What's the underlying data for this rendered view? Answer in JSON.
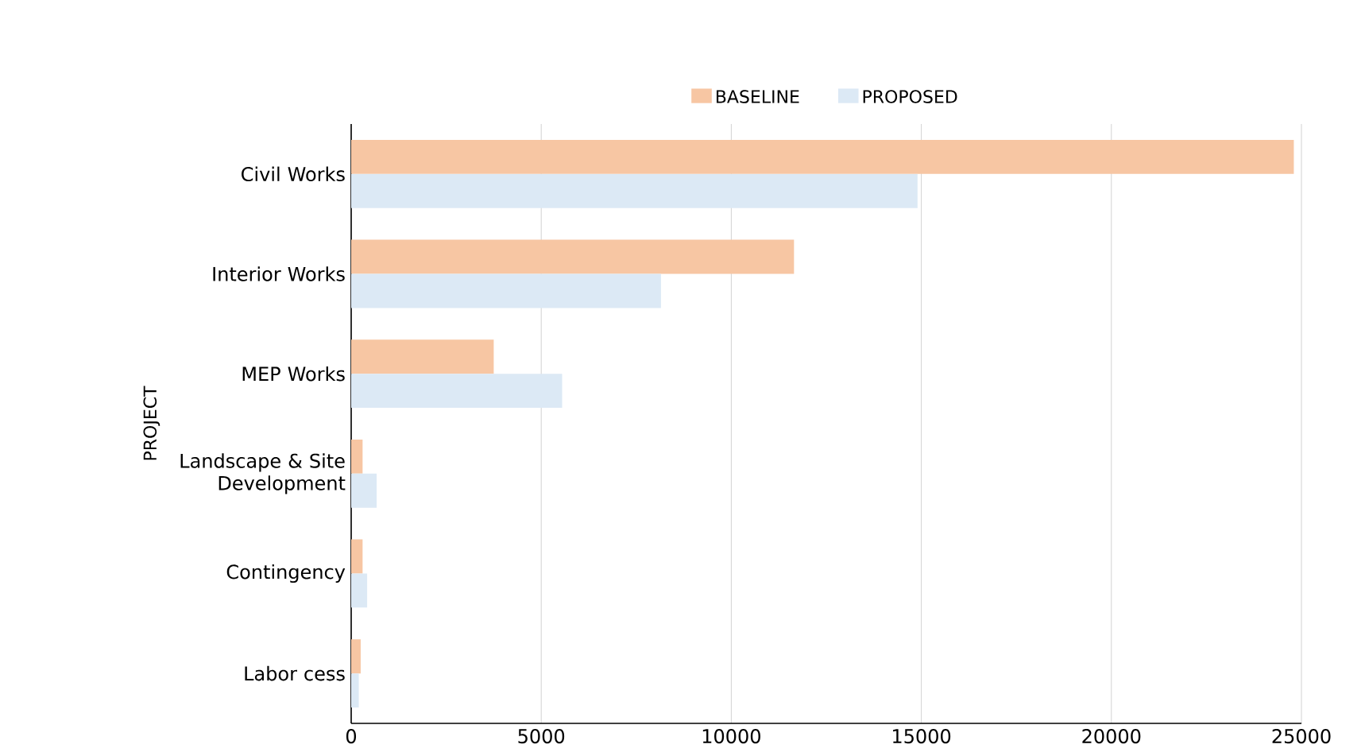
{
  "chart_data": {
    "type": "bar",
    "orientation": "horizontal",
    "ylabel": "PROJECT",
    "categories": [
      "Civil Works",
      "Interior Works",
      "MEP Works",
      "Landscape & Site Development",
      "Contingency",
      "Labor cess"
    ],
    "series": [
      {
        "name": "BASELINE",
        "color": "#f7c6a3",
        "values": [
          24800,
          11650,
          3750,
          300,
          300,
          250
        ]
      },
      {
        "name": "PROPOSED",
        "color": "#dce9f5",
        "values": [
          14900,
          8150,
          5550,
          670,
          420,
          200
        ]
      }
    ],
    "xlim": [
      0,
      25000
    ],
    "xticks": [
      0,
      5000,
      10000,
      15000,
      20000,
      25000
    ],
    "grid": "x",
    "legend": "top"
  }
}
